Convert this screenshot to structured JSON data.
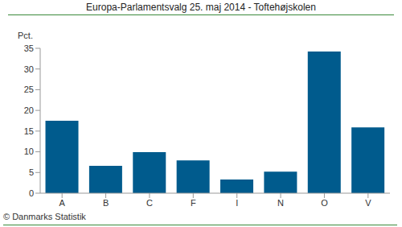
{
  "chart_data": {
    "type": "bar",
    "title": "Europa-Parlamentsvalg 25. maj 2014 - Toftehøjskolen",
    "y_label": "Pct.",
    "source": "© Danmarks Statistik",
    "categories": [
      "A",
      "B",
      "C",
      "F",
      "I",
      "N",
      "O",
      "V"
    ],
    "values": [
      17.5,
      6.6,
      9.9,
      7.9,
      3.3,
      5.2,
      34.2,
      15.9
    ],
    "color": "#005b8d",
    "ylim": [
      0,
      35
    ],
    "yticks": [
      0,
      5,
      10,
      15,
      20,
      25,
      30,
      35
    ],
    "grid": false
  }
}
